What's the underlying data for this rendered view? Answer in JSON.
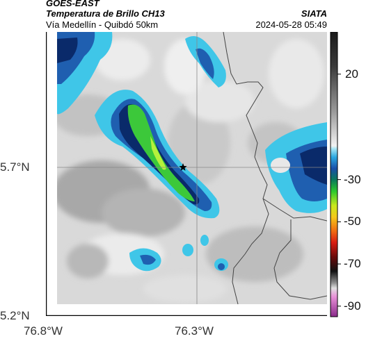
{
  "header": {
    "source": "GOES-EAST",
    "product": "Temperatura de Brillo CH13",
    "region": "Vía Medellín - Quibdó 50km",
    "brand": "SIATA",
    "datetime": "2024-05-28 05:49"
  },
  "axes": {
    "y_ticks": [
      "5.7°N",
      "5.2°N"
    ],
    "x_ticks": [
      "76.8°W",
      "76.3°W"
    ]
  },
  "colorbar": {
    "ticks": [
      "20",
      "-30",
      "-50",
      "-70",
      "-90"
    ],
    "min": -95,
    "max": 40
  },
  "map": {
    "marker": "star-icon",
    "colors": {
      "land_light": "#e8e8e8",
      "land_dark": "#9a9a9a",
      "cold_light": "#3fc6e8",
      "cold_mid": "#1f5fb0",
      "cold_deep": "#0a2a6a",
      "convective": "#3cc83a",
      "convective_core": "#b6f03c",
      "border": "#444444"
    }
  }
}
